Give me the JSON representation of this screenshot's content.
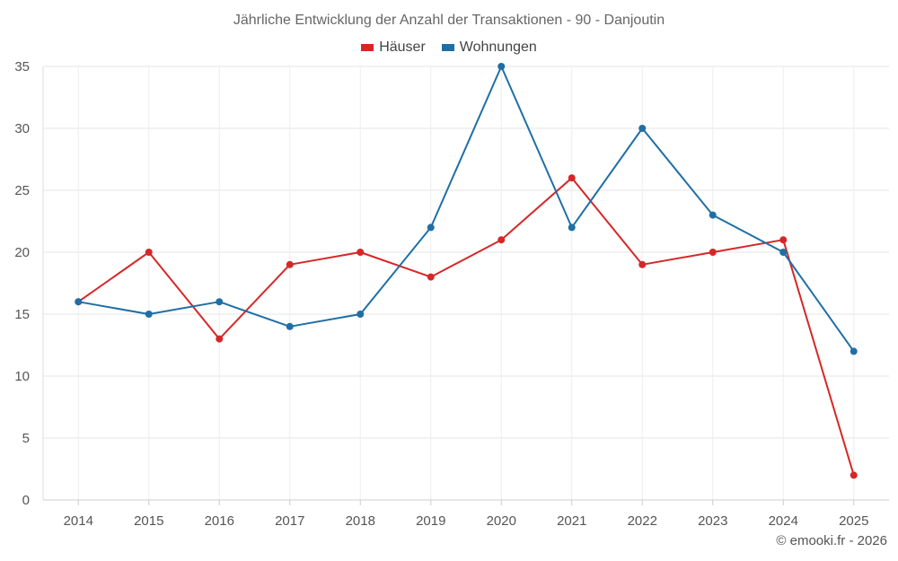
{
  "chart_data": {
    "type": "line",
    "title": "Jährliche Entwicklung der Anzahl der Transaktionen - 90 - Danjoutin",
    "categories": [
      "2014",
      "2015",
      "2016",
      "2017",
      "2018",
      "2019",
      "2020",
      "2021",
      "2022",
      "2023",
      "2024",
      "2025"
    ],
    "series": [
      {
        "name": "Häuser",
        "color": "#d62728",
        "values": [
          16,
          20,
          13,
          19,
          20,
          18,
          21,
          26,
          19,
          20,
          21,
          2
        ]
      },
      {
        "name": "Wohnungen",
        "color": "#1f6fa5",
        "values": [
          16,
          15,
          16,
          14,
          15,
          22,
          35,
          22,
          30,
          23,
          20,
          12
        ]
      }
    ],
    "ylim": [
      0,
      35
    ],
    "yticks": [
      0,
      5,
      10,
      15,
      20,
      25,
      30,
      35
    ],
    "grid": true,
    "legend": "top-center",
    "xlabel": "",
    "ylabel": ""
  },
  "credit": "© emooki.fr - 2026"
}
